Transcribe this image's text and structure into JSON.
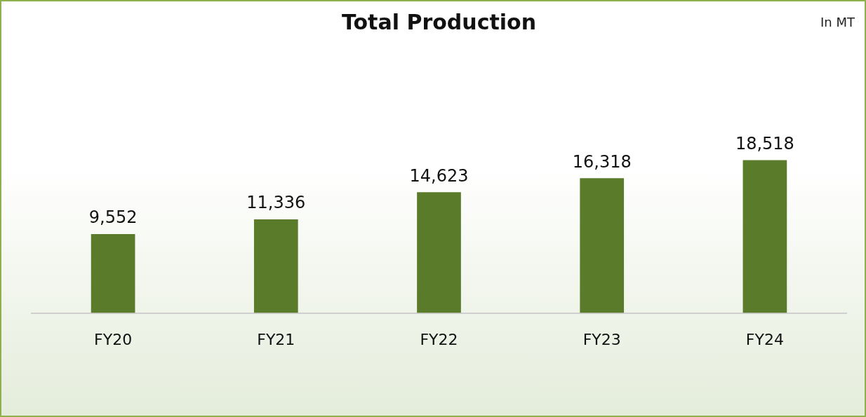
{
  "chart_data": {
    "type": "bar",
    "title": "Total Production",
    "annotations": [
      "In MT"
    ],
    "categories": [
      "FY20",
      "FY21",
      "FY22",
      "FY23",
      "FY24"
    ],
    "values": [
      9552,
      11336,
      14623,
      16318,
      18518
    ],
    "value_labels": [
      "9,552",
      "11,336",
      "14,623",
      "16,318",
      "18,518"
    ],
    "color": "#5a7b2a",
    "grid": false,
    "legend": false,
    "tick_labels": "x"
  }
}
